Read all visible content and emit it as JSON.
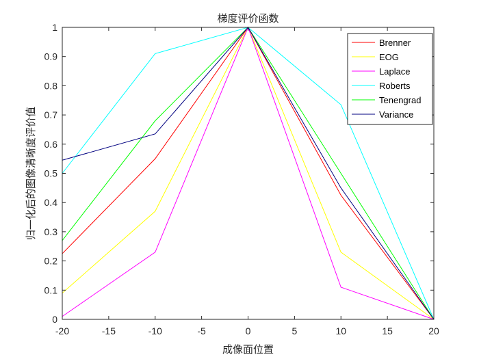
{
  "chart_data": {
    "type": "line",
    "title": "梯度评价函数",
    "xlabel": "成像面位置",
    "ylabel": "归一化后的图像清晰度评价值",
    "xlim": [
      -20,
      20
    ],
    "ylim": [
      0,
      1
    ],
    "xticks": [
      -20,
      -15,
      -10,
      -5,
      0,
      5,
      10,
      15,
      20
    ],
    "yticks": [
      0,
      0.1,
      0.2,
      0.3,
      0.4,
      0.5,
      0.6,
      0.7,
      0.8,
      0.9,
      1
    ],
    "grid": false,
    "legend_position": "top-right",
    "x": [
      -20,
      -10,
      0,
      10,
      20
    ],
    "series": [
      {
        "name": "Brenner",
        "color": "#ff0000",
        "values": [
          0.225,
          0.55,
          1,
          0.425,
          0
        ]
      },
      {
        "name": "EOG",
        "color": "#ffff00",
        "values": [
          0.09,
          0.37,
          1,
          0.23,
          0
        ]
      },
      {
        "name": "Laplace",
        "color": "#ff00ff",
        "values": [
          0.01,
          0.23,
          1,
          0.11,
          0
        ]
      },
      {
        "name": "Roberts",
        "color": "#00ffff",
        "values": [
          0.5,
          0.91,
          1,
          0.735,
          0
        ]
      },
      {
        "name": "Tenengrad",
        "color": "#00ff00",
        "values": [
          0.27,
          0.68,
          1,
          0.5,
          0
        ]
      },
      {
        "name": "Variance",
        "color": "#000080",
        "values": [
          0.545,
          0.635,
          1,
          0.45,
          0
        ]
      }
    ]
  }
}
